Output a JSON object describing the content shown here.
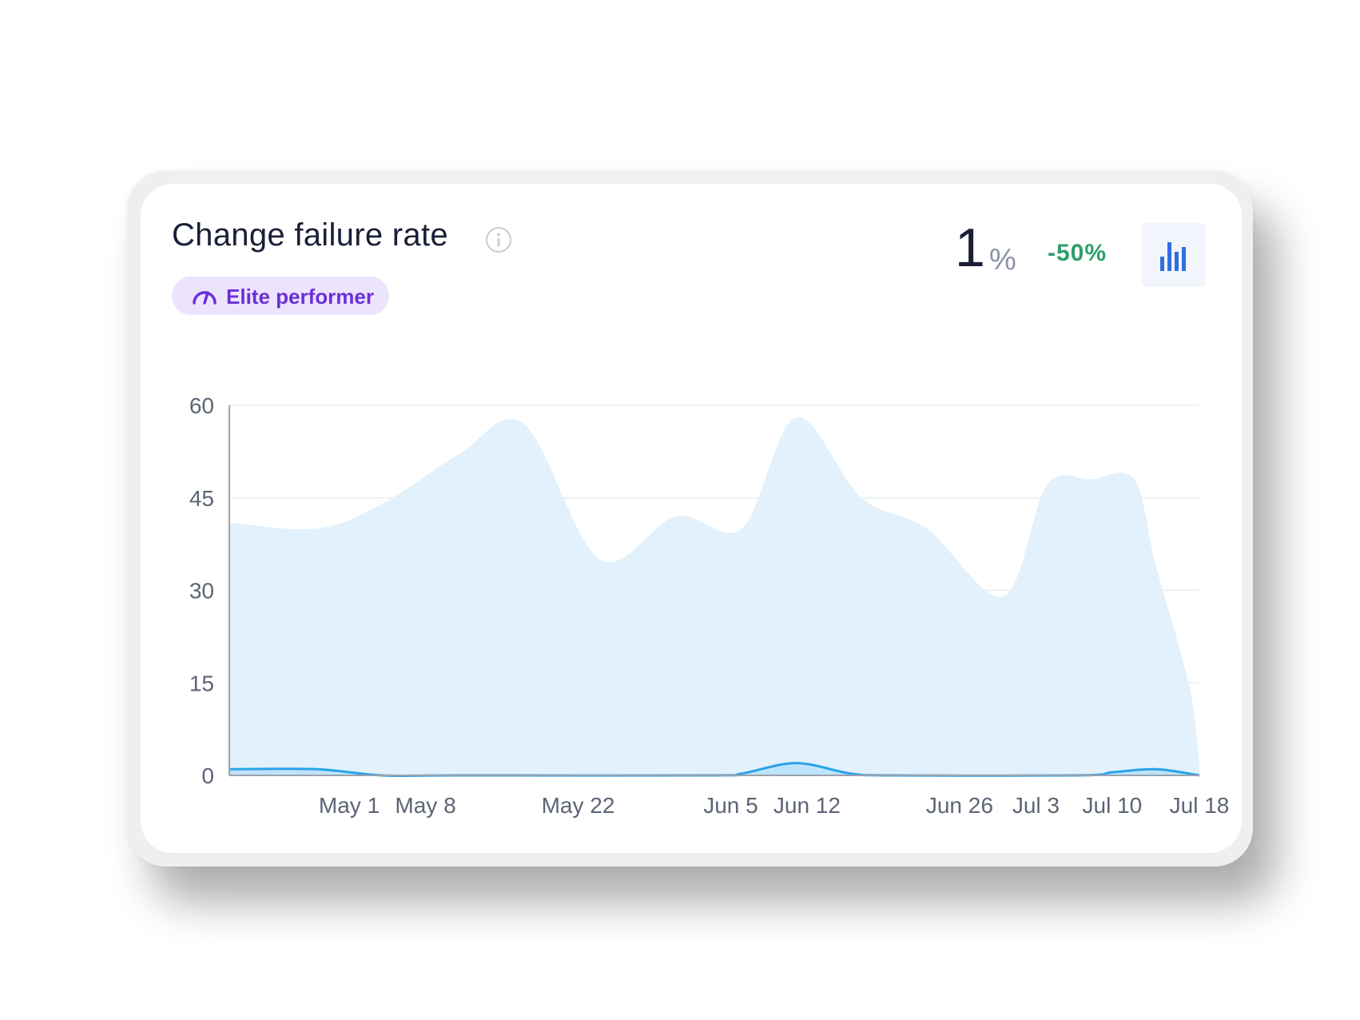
{
  "card": {
    "title": "Change failure rate",
    "badge_label": "Elite performer",
    "kpi_value": "1",
    "kpi_unit": "%",
    "kpi_change": "-50%",
    "icons": [
      "info-icon",
      "speedometer-icon",
      "bar-chart-icon"
    ]
  },
  "colors": {
    "area_fill": "#e2f1fc",
    "line": "#2aa3e8",
    "badge_bg": "#ece4fd",
    "badge_text": "#6b2fd9",
    "change_positive": "#2e9e6a"
  },
  "chart_data": {
    "type": "area",
    "ylim": [
      0,
      60
    ],
    "yticks": [
      0,
      15,
      30,
      45,
      60
    ],
    "grid": true,
    "xlim": [
      "Apr 20",
      "Jul 18"
    ],
    "x_tick_labels": [
      "May 1",
      "May 8",
      "May 22",
      "Jun 5",
      "Jun 12",
      "Jun 26",
      "Jul 3",
      "Jul 10",
      "Jul 18"
    ],
    "series": [
      {
        "role": "area",
        "x": [
          "Apr 20",
          "Apr 28",
          "May 4",
          "May 11",
          "May 17",
          "May 24",
          "May 31",
          "Jun 6",
          "Jun 11",
          "Jun 17",
          "Jun 23",
          "Jun 30",
          "Jul 4",
          "Jul 8",
          "Jul 12",
          "Jul 14",
          "Jul 17",
          "Jul 18"
        ],
        "values": [
          41,
          40,
          44,
          52,
          57,
          35,
          42,
          40,
          58,
          45,
          40,
          29,
          47,
          48,
          48,
          34,
          15,
          2
        ]
      },
      {
        "role": "line",
        "x": [
          "Apr 20",
          "Apr 28",
          "May 4",
          "May 11",
          "Jun 3",
          "Jun 6",
          "Jun 11",
          "Jun 16",
          "Jun 20",
          "Jul 7",
          "Jul 10",
          "Jul 14",
          "Jul 18"
        ],
        "values": [
          1,
          1,
          0,
          0,
          0,
          0.3,
          2,
          0.3,
          0,
          0,
          0.5,
          1,
          0
        ]
      }
    ]
  }
}
